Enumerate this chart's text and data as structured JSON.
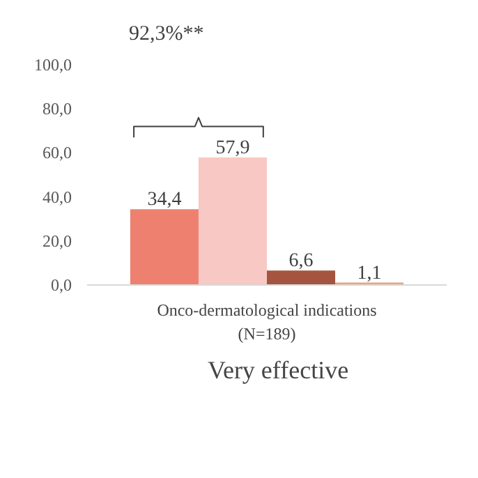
{
  "chart_data": {
    "type": "bar",
    "categories": [
      "Onco-dermatological indications\n(N=189)"
    ],
    "series": [
      {
        "name": "Very effective",
        "color": "#ee8070",
        "values": [
          34.4
        ],
        "value_labels": [
          "34,4"
        ]
      },
      {
        "color": "#f8c8c4",
        "values": [
          57.9
        ],
        "value_labels": [
          "57,9"
        ]
      },
      {
        "color": "#a5553f",
        "values": [
          6.6
        ],
        "value_labels": [
          "6,6"
        ]
      },
      {
        "color": "#eca27e",
        "values": [
          1.1
        ],
        "value_labels": [
          "1,1"
        ]
      }
    ],
    "ylim": [
      0,
      100
    ],
    "yticks": [
      {
        "value": 0,
        "label": "0,0"
      },
      {
        "value": 20,
        "label": "20,0"
      },
      {
        "value": 40,
        "label": "40,0"
      },
      {
        "value": 60,
        "label": "60,0"
      },
      {
        "value": 80,
        "label": "80,0"
      },
      {
        "value": 100,
        "label": "100,0"
      }
    ],
    "annotations": [
      "92,3%**"
    ],
    "grid": false,
    "legend": "bottom"
  }
}
